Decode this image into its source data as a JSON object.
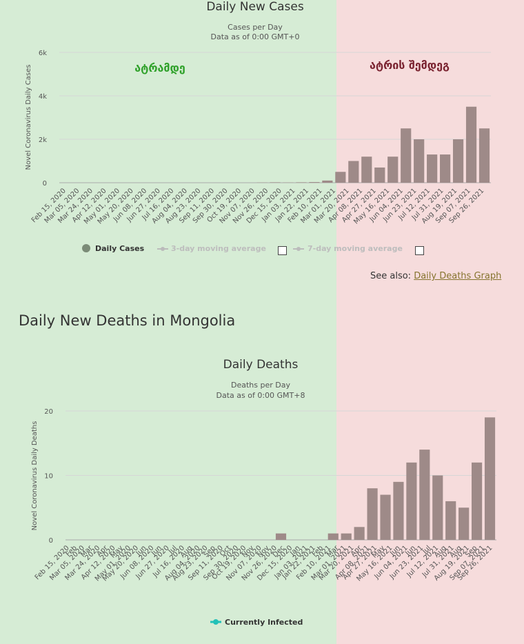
{
  "colors": {
    "left_bg": "#d6ecd5",
    "right_bg": "#f6dcdc",
    "bar": "#9e8a88",
    "grid": "#d8d8d8",
    "before": "#2fa12a",
    "after": "#7a2330",
    "legend_dot": "#7b8b77",
    "teal": "#22c1b8"
  },
  "see_also": {
    "prefix": "See also: ",
    "link": "Daily Deaths Graph"
  },
  "section_title": "Daily New Deaths in Mongolia",
  "charts": [
    {
      "title": "Daily New Cases",
      "subtitle1": "Cases per Day",
      "subtitle2": "Data as of 0:00 GMT+0",
      "ylabel": "Novel Coronavirus Daily Cases",
      "before_label": "ატრამდე",
      "after_label": "ატრის შემდეგ",
      "legend": [
        {
          "label": "Daily Cases",
          "active": true
        },
        {
          "label": "3-day moving average",
          "active": false
        },
        {
          "label": "7-day moving average",
          "active": false
        }
      ]
    },
    {
      "title": "Daily Deaths",
      "subtitle1": "Deaths per Day",
      "subtitle2": "Data as of 0:00 GMT+8",
      "ylabel": "Novel Coronavirus Daily Deaths",
      "legend": [
        {
          "label": "Currently Infected",
          "active": true
        }
      ]
    }
  ],
  "chart_data": [
    {
      "type": "bar",
      "title": "Daily New Cases",
      "ylabel": "Novel Coronavirus Daily Cases",
      "ylim": [
        0,
        6000
      ],
      "yticks": [
        "0",
        "2k",
        "4k",
        "6k"
      ],
      "xticks": [
        "Feb 15, 2020",
        "Mar 05, 2020",
        "Mar 24, 2020",
        "Apr 12, 2020",
        "May 01, 2020",
        "May 20, 2020",
        "Jun 08, 2020",
        "Jun 27, 2020",
        "Jul 16, 2020",
        "Aug 04, 2020",
        "Aug 23, 2020",
        "Sep 11, 2020",
        "Sep 30, 2020",
        "Oct 19, 2020",
        "Nov 07, 2020",
        "Nov 26, 2020",
        "Dec 15, 2020",
        "Jan 03, 2021",
        "Jan 22, 2021",
        "Feb 10, 2021",
        "Mar 01, 2021",
        "Mar 20, 2021",
        "Apr 08, 2021",
        "Apr 27, 2021",
        "May 16, 2021",
        "Jun 04, 2021",
        "Jun 23, 2021",
        "Jul 12, 2021",
        "Jul 31, 2021",
        "Aug 19, 2021",
        "Sep 07, 2021",
        "Sep 26, 2021"
      ],
      "series": [
        {
          "name": "Daily Cases",
          "values": [
            0,
            0,
            0,
            0,
            0,
            0,
            0,
            0,
            0,
            0,
            0,
            0,
            0,
            0,
            0,
            10,
            20,
            10,
            20,
            30,
            100,
            500,
            1000,
            1200,
            700,
            1200,
            2500,
            2000,
            1300,
            1300,
            2000,
            3500,
            2500
          ]
        }
      ]
    },
    {
      "type": "bar",
      "title": "Daily Deaths",
      "ylabel": "Novel Coronavirus Daily Deaths",
      "ylim": [
        0,
        20
      ],
      "yticks": [
        "0",
        "10",
        "20"
      ],
      "xticks": [
        "Feb 15, 2020",
        "Feb",
        "Mar 05, 2020",
        "Mar",
        "Mar 24, 2020",
        "Apr",
        "Apr 12, 2020",
        "May",
        "May 01, 2020",
        "May 20, 2020",
        "Jun",
        "Jun 08, 2020",
        "Jun",
        "Jun 27, 2020",
        "Jul",
        "Jul 16, 2020",
        "Aug",
        "Aug 04, 2020",
        "Aug 23, 2020",
        "Sep",
        "Sep 11, 2020",
        "Oct",
        "Sep 30, 2020",
        "Oct 19, 2020",
        "Nov",
        "Nov 07, 2020",
        "Nov",
        "Nov 26, 2020",
        "Dec",
        "Dec 15, 2020",
        "Jan",
        "Jan 03, 2021",
        "Jan 22, 2021",
        "Feb",
        "Feb 10, 2021",
        "Mar",
        "Mar 01, 2021",
        "Mar 20, 2021",
        "Apr",
        "Apr 08, 2021",
        "Apr 27, 2021",
        "May",
        "May 16, 2021",
        "Jun",
        "Jun 04, 2021",
        "Jun",
        "Jun 23, 2021",
        "Jul",
        "Jul 12, 2021",
        "Aug",
        "Jul 31, 2021",
        "Aug",
        "Aug 19, 2021",
        "Sep",
        "Sep 07, 2021",
        "Sep 26, 2021"
      ],
      "series": [
        {
          "name": "Currently Infected",
          "values": [
            0,
            0,
            0,
            0,
            0,
            0,
            0,
            0,
            0,
            0,
            0,
            0,
            0,
            0,
            0,
            0,
            1,
            0,
            0,
            0,
            1,
            1,
            2,
            8,
            7,
            9,
            12,
            14,
            10,
            6,
            5,
            12,
            19
          ]
        }
      ]
    }
  ]
}
